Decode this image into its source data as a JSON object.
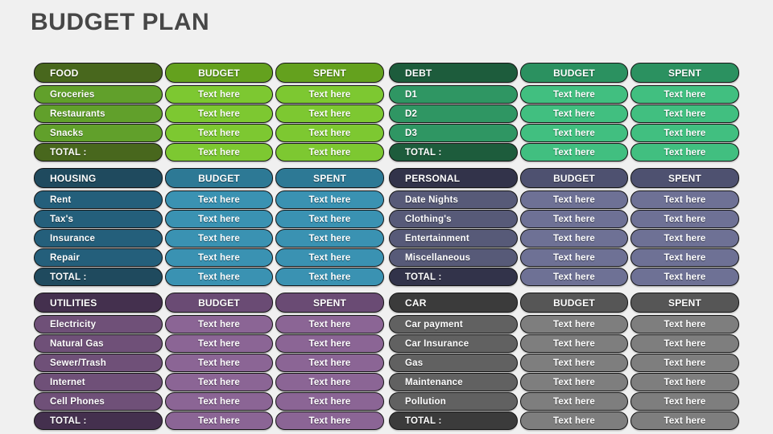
{
  "title": "BUDGET PLAN",
  "placeholder": "Text here",
  "total_label": "TOTAL :",
  "column_headers": {
    "budget": "BUDGET",
    "spent": "SPENT"
  },
  "theme": {
    "background": "#f0f0f0",
    "title_color": "#474747",
    "pill_outline": "#161616",
    "text_color": "#ffffff"
  },
  "sections": [
    {
      "id": "food",
      "name": "FOOD",
      "colors": {
        "header": "#48671d",
        "mid": "#64a11e",
        "label": "#61a02b",
        "cell": "#7dc831"
      },
      "rows": [
        "Groceries",
        "Restaurants",
        "Snacks"
      ]
    },
    {
      "id": "debt",
      "name": "DEBT",
      "colors": {
        "header": "#1d5c3c",
        "mid": "#2b9160",
        "label": "#2f9663",
        "cell": "#41bf80"
      },
      "rows": [
        "D1",
        "D2",
        "D3"
      ]
    },
    {
      "id": "housing",
      "name": "HOUSING",
      "colors": {
        "header": "#1f4a5e",
        "mid": "#2d7995",
        "label": "#245f7b",
        "cell": "#3a92b2"
      },
      "rows": [
        "Rent",
        "Tax's",
        "Insurance",
        "Repair"
      ]
    },
    {
      "id": "personal",
      "name": "PERSONAL",
      "colors": {
        "header": "#32334a",
        "mid": "#4e5170",
        "label": "#575a78",
        "cell": "#6e7195"
      },
      "rows": [
        "Date Nights",
        "Clothing's",
        "Entertainment",
        "Miscellaneous"
      ]
    },
    {
      "id": "utilities",
      "name": "UTILITIES",
      "colors": {
        "header": "#44304e",
        "mid": "#6a4b74",
        "label": "#6f5078",
        "cell": "#8b6595"
      },
      "rows": [
        "Electricity",
        "Natural Gas",
        "Sewer/Trash",
        "Internet",
        "Cell Phones"
      ]
    },
    {
      "id": "car",
      "name": "CAR",
      "colors": {
        "header": "#3b3b3b",
        "mid": "#565656",
        "label": "#616161",
        "cell": "#7e7e7e"
      },
      "rows": [
        "Car payment",
        "Car Insurance",
        "Gas",
        "Maintenance",
        "Pollution"
      ]
    }
  ]
}
